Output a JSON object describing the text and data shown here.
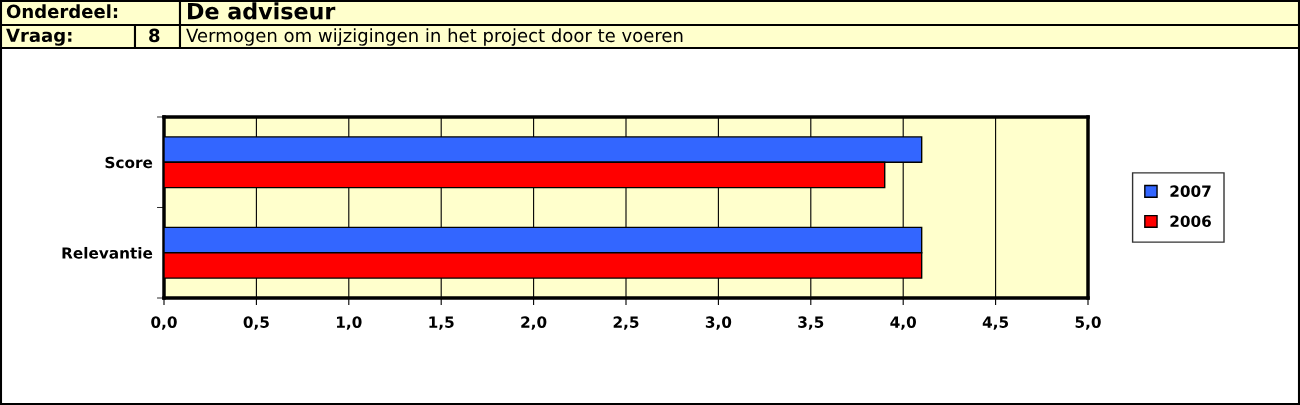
{
  "chart_data": {
    "type": "bar",
    "orientation": "horizontal",
    "title": "De adviseur",
    "subtitle": "Vermogen om wijzigingen in het project door te voeren",
    "annotations": [
      "Onderdeel:",
      "Vraag:",
      "8"
    ],
    "categories": [
      "Score",
      "Relevantie"
    ],
    "series": [
      {
        "name": "2007",
        "color": "#3366ff",
        "values": [
          4.1,
          4.1
        ]
      },
      {
        "name": "2006",
        "color": "#ff0000",
        "values": [
          3.9,
          4.1
        ]
      }
    ],
    "xlim": [
      0,
      5
    ],
    "xticks": [
      {
        "value": 0,
        "label": "0,0"
      },
      {
        "value": 0.5,
        "label": "0,5"
      },
      {
        "value": 1,
        "label": "1,0"
      },
      {
        "value": 1.5,
        "label": "1,5"
      },
      {
        "value": 2,
        "label": "2,0"
      },
      {
        "value": 2.5,
        "label": "2,5"
      },
      {
        "value": 3,
        "label": "3,0"
      },
      {
        "value": 3.5,
        "label": "3,5"
      },
      {
        "value": 4,
        "label": "4,0"
      },
      {
        "value": 4.5,
        "label": "4,5"
      },
      {
        "value": 5,
        "label": "5,0"
      }
    ],
    "grid": "x",
    "legend": "right"
  }
}
